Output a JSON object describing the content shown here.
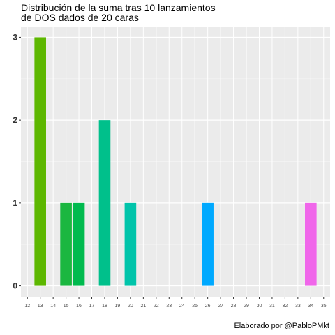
{
  "chart_data": {
    "type": "bar",
    "title_lines": [
      "Distribución de la suma tras 10 lanzamientos",
      "de DOS dados de 20 caras"
    ],
    "caption": "Elaborado por @PabloPMkt",
    "xlabel": "",
    "ylabel": "",
    "x_ticks": [
      12,
      13,
      14,
      15,
      16,
      17,
      18,
      19,
      20,
      21,
      22,
      23,
      24,
      25,
      26,
      27,
      28,
      29,
      30,
      31,
      32,
      33,
      34,
      35
    ],
    "y_ticks": [
      0,
      1,
      2,
      3
    ],
    "xlim": [
      11.5,
      35.5
    ],
    "ylim": [
      -0.13,
      3.13
    ],
    "grid": true,
    "bars": [
      {
        "x": 13,
        "y": 3,
        "color": "#5DB700"
      },
      {
        "x": 15,
        "y": 1,
        "color": "#1BB740"
      },
      {
        "x": 16,
        "y": 1,
        "color": "#00BA4E"
      },
      {
        "x": 18,
        "y": 2,
        "color": "#00C08B"
      },
      {
        "x": 20,
        "y": 1,
        "color": "#00C4AA"
      },
      {
        "x": 26,
        "y": 1,
        "color": "#00A9FF"
      },
      {
        "x": 34,
        "y": 1,
        "color": "#F066EA"
      }
    ]
  }
}
